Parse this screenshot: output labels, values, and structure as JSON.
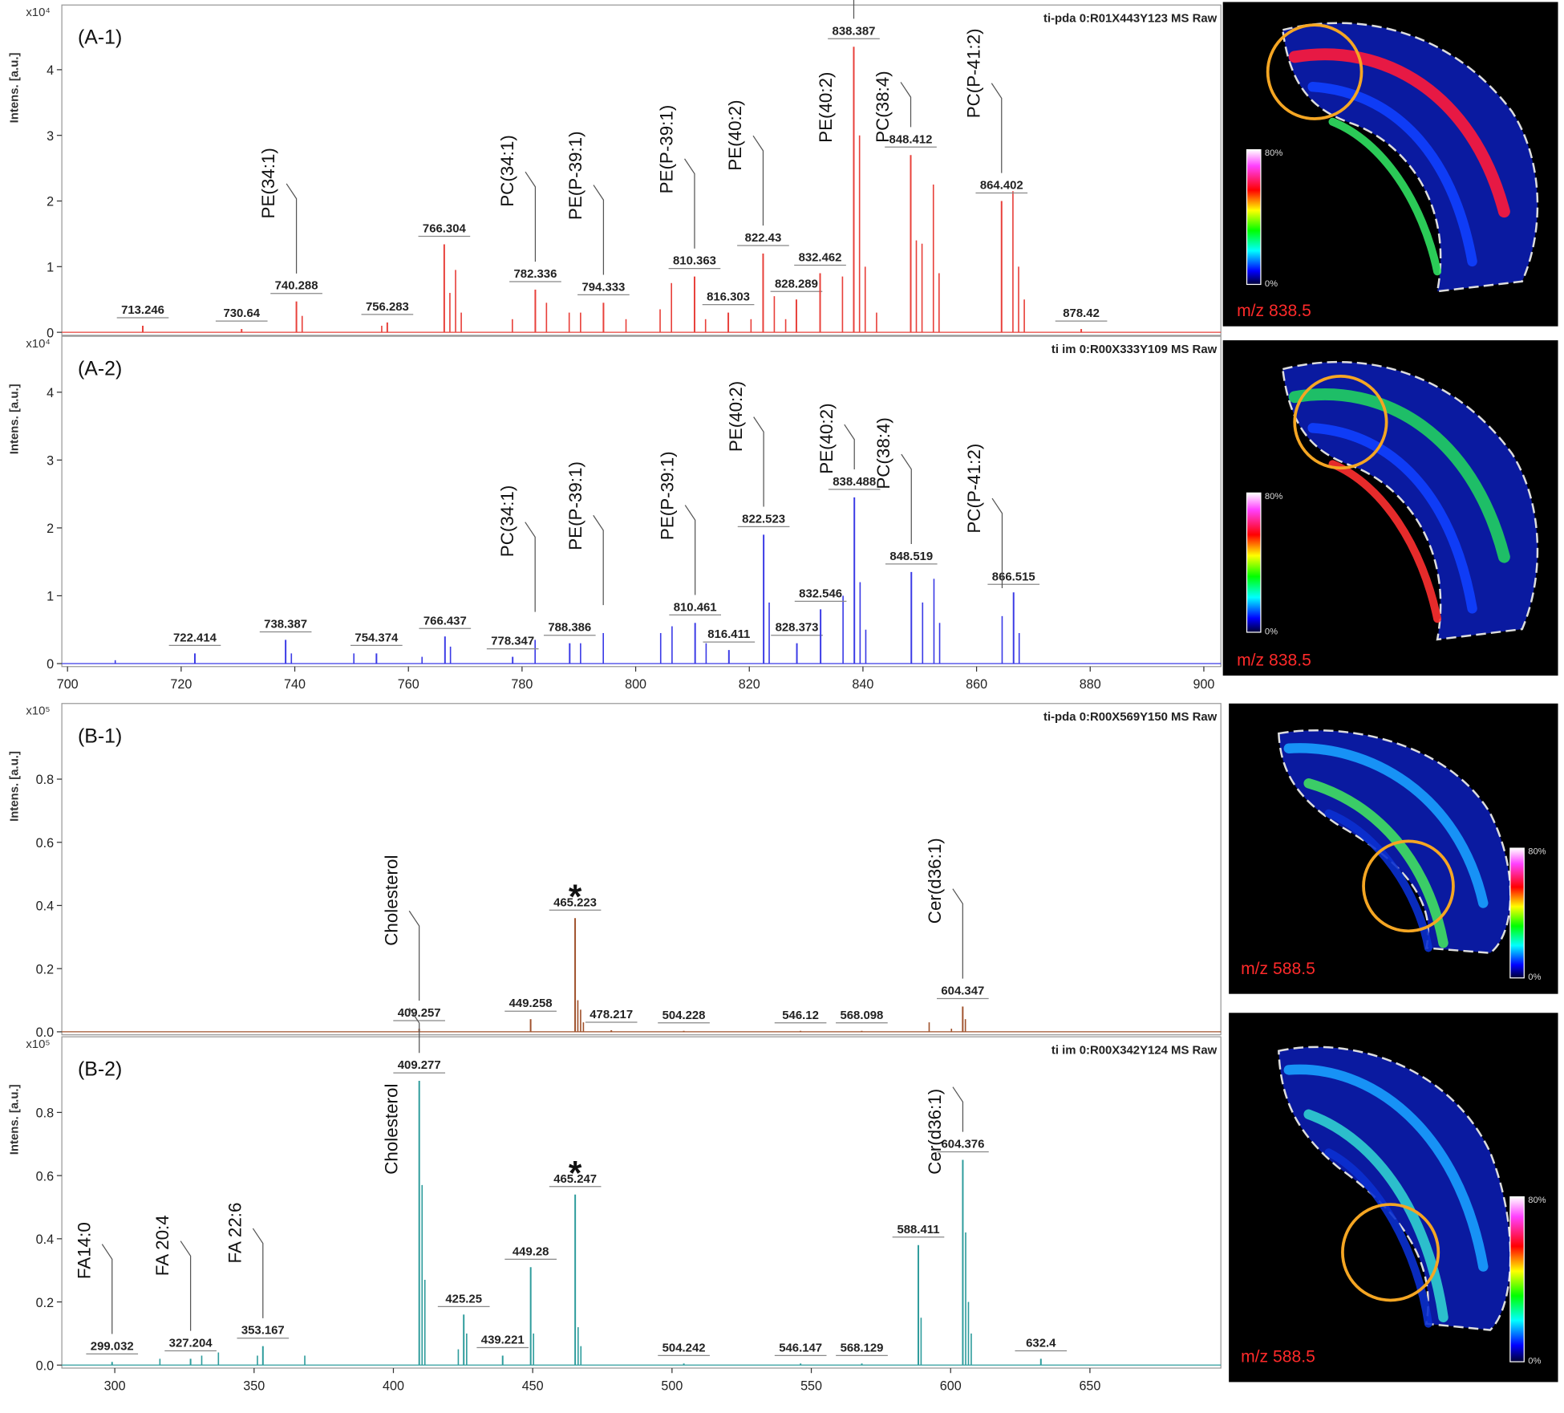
{
  "chart_data": [
    {
      "type": "bar",
      "panel_label": "(A-1)",
      "header": "ti-pda 0:R01X443Y123 MS Raw",
      "y_label": "Intens. [a.u.]",
      "y_multiplier": "x10⁴",
      "color": "#e8403a",
      "xlim": [
        699,
        903
      ],
      "ylim": [
        0,
        4.94
      ],
      "yticks": [
        0,
        1,
        2,
        3,
        4
      ],
      "x": [
        713.246,
        730.64,
        740.288,
        756.283,
        766.304,
        782.336,
        794.333,
        810.363,
        816.303,
        822.43,
        828.289,
        832.462,
        838.387,
        848.412,
        864.402,
        878.42
      ],
      "values": [
        0.1,
        0.05,
        0.47,
        0.15,
        1.34,
        0.65,
        0.45,
        0.85,
        0.3,
        1.2,
        0.5,
        0.9,
        4.35,
        2.7,
        2.0,
        0.05
      ],
      "minor_peaks": {
        "x": [
          741.3,
          755.3,
          767.3,
          768.3,
          769.3,
          778.3,
          784.3,
          788.3,
          790.3,
          798.3,
          804.3,
          806.3,
          812.3,
          820.3,
          824.4,
          826.4,
          836.4,
          839.4,
          840.4,
          842.4,
          849.4,
          850.4,
          852.4,
          853.4,
          866.4,
          867.4,
          868.4
        ],
        "values": [
          0.25,
          0.1,
          0.6,
          0.95,
          0.3,
          0.2,
          0.45,
          0.3,
          0.3,
          0.2,
          0.35,
          0.75,
          0.2,
          0.2,
          0.55,
          0.2,
          0.85,
          3.0,
          1.0,
          0.3,
          1.4,
          1.35,
          2.25,
          0.9,
          2.15,
          1.0,
          0.5
        ]
      },
      "annotations": [
        {
          "text": "PE(34:1)",
          "x": 740.288
        },
        {
          "text": "PC(34:1)",
          "x": 782.336
        },
        {
          "text": "PE(P-39:1)",
          "x": 794.333
        },
        {
          "text": "PE(P-39:1)",
          "x": 810.363
        },
        {
          "text": "PE(40:2)",
          "x": 822.43
        },
        {
          "text": "PE(40:2)",
          "x": 838.387
        },
        {
          "text": "PC(38:4)",
          "x": 848.412
        },
        {
          "text": "PC(P-41:2)",
          "x": 864.402
        }
      ]
    },
    {
      "type": "bar",
      "panel_label": "(A-2)",
      "header": "ti im 0:R00X333Y109 MS Raw",
      "y_label": "Intens. [a.u.]",
      "y_multiplier": "x10⁴",
      "color": "#3b3be6",
      "xlim": [
        699,
        903
      ],
      "ylim": [
        0,
        4.78
      ],
      "yticks": [
        0,
        1,
        2,
        3,
        4
      ],
      "xticks": [
        700,
        720,
        740,
        760,
        780,
        800,
        820,
        840,
        860,
        880,
        900
      ],
      "x": [
        722.414,
        738.387,
        754.374,
        766.437,
        778.347,
        788.386,
        810.461,
        816.411,
        822.523,
        828.373,
        832.546,
        838.488,
        848.519,
        866.515
      ],
      "values": [
        0.15,
        0.35,
        0.15,
        0.4,
        0.1,
        0.3,
        0.6,
        0.2,
        1.9,
        0.3,
        0.8,
        2.45,
        1.35,
        1.05
      ],
      "minor_peaks": {
        "x": [
          708.4,
          739.4,
          750.4,
          762.4,
          767.4,
          782.3,
          790.3,
          794.3,
          804.4,
          806.4,
          812.4,
          823.5,
          836.5,
          839.5,
          840.5,
          850.5,
          852.5,
          853.5,
          864.5,
          867.5
        ],
        "values": [
          0.05,
          0.15,
          0.15,
          0.1,
          0.25,
          0.35,
          0.3,
          0.45,
          0.45,
          0.55,
          0.3,
          0.9,
          1.0,
          1.2,
          0.5,
          0.9,
          1.25,
          0.6,
          0.7,
          0.45
        ]
      },
      "annotations": [
        {
          "text": "PC(34:1)",
          "x": 782.3
        },
        {
          "text": "PE(P-39:1)",
          "x": 794.3
        },
        {
          "text": "PE(P-39:1)",
          "x": 810.461
        },
        {
          "text": "PE(40:2)",
          "x": 822.523
        },
        {
          "text": "PE(40:2)",
          "x": 838.488
        },
        {
          "text": "PC(38:4)",
          "x": 848.519
        },
        {
          "text": "PC(P-41:2)",
          "x": 864.5
        }
      ]
    },
    {
      "type": "bar",
      "panel_label": "(B-1)",
      "header": "ti-pda 0:R00X569Y150 MS Raw",
      "y_label": "Intens. [a.u.]",
      "y_multiplier": "x10⁵",
      "color": "#a0522d",
      "xlim": [
        281,
        697
      ],
      "ylim": [
        0,
        1.03
      ],
      "yticks": [
        {
          "value": 0,
          "label": "0.0"
        },
        0.2,
        0.4,
        0.6,
        0.8
      ],
      "x": [
        409.257,
        449.258,
        465.223,
        478.217,
        504.228,
        546.12,
        568.098,
        604.347
      ],
      "values": [
        0.01,
        0.04,
        0.36,
        0.005,
        0.003,
        0.003,
        0.003,
        0.08
      ],
      "minor_peaks": {
        "x": [
          466.2,
          467.2,
          468.2,
          592.3,
          600.3,
          605.3
        ],
        "values": [
          0.1,
          0.07,
          0.03,
          0.03,
          0.01,
          0.04
        ]
      },
      "annotations": [
        {
          "text": "Cholesterol",
          "x": 409.257
        },
        {
          "text": "Cer(d36:1)",
          "x": 604.347
        }
      ],
      "markers": [
        {
          "text": "*",
          "x": 465.223
        }
      ]
    },
    {
      "type": "bar",
      "panel_label": "(B-2)",
      "header": "ti im 0:R00X342Y124 MS Raw",
      "y_label": "Intens. [a.u.]",
      "y_multiplier": "x10⁵",
      "color": "#2e9c9c",
      "xlim": [
        281,
        697
      ],
      "ylim": [
        0,
        1.03
      ],
      "yticks": [
        {
          "value": 0,
          "label": "0.0"
        },
        0.2,
        0.4,
        0.6,
        0.8
      ],
      "xticks": [
        300,
        350,
        400,
        450,
        500,
        550,
        600,
        650
      ],
      "x": [
        299.032,
        327.204,
        353.167,
        409.277,
        425.25,
        439.221,
        449.28,
        465.247,
        504.242,
        546.147,
        568.129,
        588.411,
        604.376,
        632.4
      ],
      "values": [
        0.01,
        0.02,
        0.06,
        0.9,
        0.16,
        0.03,
        0.31,
        0.54,
        0.005,
        0.005,
        0.005,
        0.38,
        0.65,
        0.02
      ],
      "minor_peaks": {
        "x": [
          316.2,
          331.2,
          337.2,
          351.2,
          368.2,
          410.3,
          411.3,
          423.3,
          426.3,
          450.3,
          466.3,
          467.3,
          589.4,
          605.4,
          606.4,
          607.4
        ],
        "values": [
          0.02,
          0.03,
          0.04,
          0.03,
          0.03,
          0.57,
          0.27,
          0.05,
          0.1,
          0.1,
          0.12,
          0.06,
          0.15,
          0.42,
          0.2,
          0.1
        ]
      },
      "annotations": [
        {
          "text": "FA14:0",
          "x": 299.032
        },
        {
          "text": "FA 20:4",
          "x": 327.204
        },
        {
          "text": "FA 22:6",
          "x": 353.167
        },
        {
          "text": "Cholesterol",
          "x": 409.277
        },
        {
          "text": "Cer(d36:1)",
          "x": 604.376
        }
      ],
      "markers": [
        {
          "text": "*",
          "x": 465.247
        }
      ]
    }
  ],
  "images": [
    {
      "label": "m/z 838.5",
      "scale_max": "80%",
      "scale_min": "0%"
    },
    {
      "label": "m/z 838.5",
      "scale_max": "80%",
      "scale_min": "0%"
    },
    {
      "label": "m/z 588.5",
      "scale_max": "80%",
      "scale_min": "0%"
    },
    {
      "label": "m/z 588.5",
      "scale_max": "80%",
      "scale_min": "0%"
    }
  ]
}
